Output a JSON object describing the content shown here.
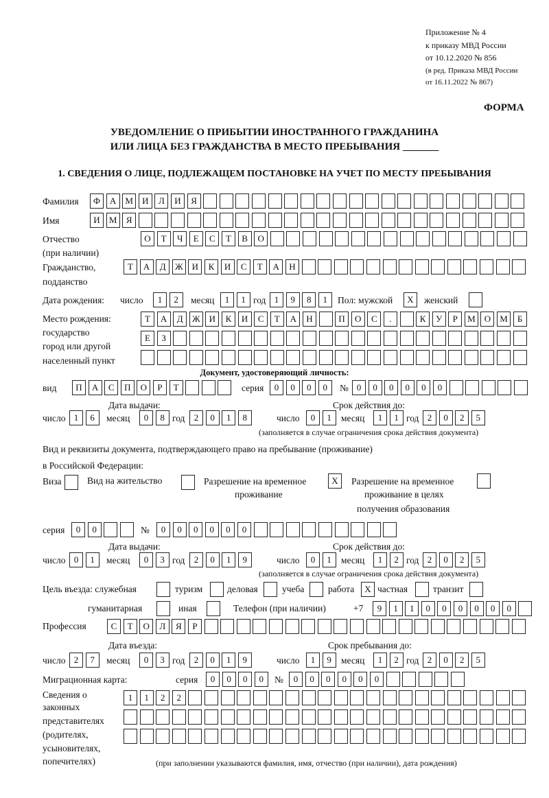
{
  "header": {
    "appendix": "Приложение № 4",
    "order": "к приказу МВД России",
    "order_date": "от 10.12.2020 № 856",
    "edition1": "(в ред. Приказа МВД России",
    "edition2": "от 16.11.2022 № 867)",
    "form_label": "ФОРМА",
    "title1": "УВЕДОМЛЕНИЕ О ПРИБЫТИИ ИНОСТРАННОГО ГРАЖДАНИНА",
    "title2": "ИЛИ ЛИЦА БЕЗ ГРАЖДАНСТВА В МЕСТО ПРЕБЫВАНИЯ _______"
  },
  "section1": {
    "heading": "1. СВЕДЕНИЯ О ЛИЦЕ, ПОДЛЕЖАЩЕМ ПОСТАНОВКЕ НА УЧЕТ ПО МЕСТУ ПРЕБЫВАНИЯ",
    "labels": {
      "surname": "Фамилия",
      "name": "Имя",
      "patronymic": "Отчество",
      "patronymic2": "(при наличии)",
      "citizenship": "Гражданство,",
      "citizenship2": "подданство",
      "birth_date": "Дата рождения:",
      "day": "число",
      "month": "месяц",
      "year": "год",
      "sex": "Пол: мужской",
      "female": "женский",
      "birth_place": "Место рождения:",
      "state": "государство",
      "city": "город или другой",
      "settlement": "населенный пункт",
      "id_doc": "Документ, удостоверяющий личность:",
      "kind": "вид",
      "series": "серия",
      "number": "№",
      "issue_date": "Дата выдачи:",
      "valid_until": "Срок действия до:",
      "valid_note": "(заполняется в случае ограничения срока действия документа)",
      "permit1": "Вид и реквизиты документа, подтверждающего право на пребывание (проживание)",
      "permit2": "в Российской Федерации:",
      "visa": "Виза",
      "residence": "Вид на жительство",
      "trp1": "Разрешение на временное",
      "trp2": "проживание",
      "trp_edu1": "Разрешение на временное",
      "trp_edu2": "проживание в целях",
      "trp_edu3": "получения образования",
      "purpose": "Цель въезда: служебная",
      "tourism": "туризм",
      "business": "деловая",
      "study": "учеба",
      "work": "работа",
      "private": "частная",
      "transit": "транзит",
      "humanitarian": "гуманитарная",
      "other": "иная",
      "phone": "Телефон (при наличии)",
      "phone_prefix": "+7",
      "profession": "Профессия",
      "entry_date": "Дата въезда:",
      "stay_until": "Срок пребывания до:",
      "migration_card": "Миграционная карта:",
      "reps1": "Сведения о",
      "reps2": "законных",
      "reps3": "представителях",
      "reps4": "(родителях,",
      "reps5": "усыновителях,",
      "reps6": "попечителях)",
      "reps_note": "(при заполнении указываются фамилия, имя, отчество (при наличии), дата рождения)"
    },
    "surname": [
      "Ф",
      "А",
      "М",
      "И",
      "Л",
      "И",
      "Я",
      "",
      "",
      "",
      "",
      "",
      "",
      "",
      "",
      "",
      "",
      "",
      "",
      "",
      "",
      "",
      "",
      "",
      "",
      "",
      ""
    ],
    "name": [
      "И",
      "М",
      "Я",
      "",
      "",
      "",
      "",
      "",
      "",
      "",
      "",
      "",
      "",
      "",
      "",
      "",
      "",
      "",
      "",
      "",
      "",
      "",
      "",
      "",
      "",
      "",
      ""
    ],
    "patronymic": [
      "О",
      "Т",
      "Ч",
      "Е",
      "С",
      "Т",
      "В",
      "О",
      "",
      "",
      "",
      "",
      "",
      "",
      "",
      "",
      "",
      "",
      "",
      "",
      "",
      "",
      "",
      ""
    ],
    "citizenship": [
      "Т",
      "А",
      "Д",
      "Ж",
      "И",
      "К",
      "И",
      "С",
      "Т",
      "А",
      "Н",
      "",
      "",
      "",
      "",
      "",
      "",
      "",
      "",
      "",
      "",
      "",
      "",
      "",
      ""
    ],
    "birth_day": [
      "1",
      "2"
    ],
    "birth_month": [
      "1",
      "1"
    ],
    "birth_year": [
      "1",
      "9",
      "8",
      "1"
    ],
    "sex_male": [
      "X"
    ],
    "sex_female": [
      ""
    ],
    "birth_place_1": [
      "Т",
      "А",
      "Д",
      "Ж",
      "И",
      "К",
      "И",
      "С",
      "Т",
      "А",
      "Н",
      "",
      "П",
      "О",
      "С",
      ".",
      "",
      "К",
      "У",
      "Р",
      "М",
      "О",
      "М",
      "Б"
    ],
    "birth_place_2": [
      "Е",
      "З",
      "",
      "",
      "",
      "",
      "",
      "",
      "",
      "",
      "",
      "",
      "",
      "",
      "",
      "",
      "",
      "",
      "",
      "",
      "",
      "",
      "",
      ""
    ],
    "birth_place_3": [
      "",
      "",
      "",
      "",
      "",
      "",
      "",
      "",
      "",
      "",
      "",
      "",
      "",
      "",
      "",
      "",
      "",
      "",
      "",
      "",
      "",
      "",
      "",
      ""
    ],
    "doc_kind": [
      "П",
      "А",
      "С",
      "П",
      "О",
      "Р",
      "Т",
      "",
      "",
      ""
    ],
    "doc_series": [
      "0",
      "0",
      "0",
      "0"
    ],
    "doc_number": [
      "0",
      "0",
      "0",
      "0",
      "0",
      "0",
      "",
      "",
      "",
      "",
      ""
    ],
    "doc_issue_day": [
      "1",
      "6"
    ],
    "doc_issue_month": [
      "0",
      "8"
    ],
    "doc_issue_year": [
      "2",
      "0",
      "1",
      "8"
    ],
    "doc_valid_day": [
      "0",
      "1"
    ],
    "doc_valid_month": [
      "1",
      "1"
    ],
    "doc_valid_year": [
      "2",
      "0",
      "2",
      "5"
    ],
    "permit_visa": [
      ""
    ],
    "permit_residence": [
      ""
    ],
    "permit_trp": [
      "X"
    ],
    "permit_trp_edu": [
      ""
    ],
    "permit_series": [
      "0",
      "0",
      "",
      ""
    ],
    "permit_number": [
      "0",
      "0",
      "0",
      "0",
      "0",
      "0",
      "",
      "",
      "",
      "",
      "",
      "",
      "",
      "",
      ""
    ],
    "permit_issue_day": [
      "0",
      "1"
    ],
    "permit_issue_month": [
      "0",
      "3"
    ],
    "permit_issue_year": [
      "2",
      "0",
      "1",
      "9"
    ],
    "permit_valid_day": [
      "0",
      "1"
    ],
    "permit_valid_month": [
      "1",
      "2"
    ],
    "permit_valid_year": [
      "2",
      "0",
      "2",
      "5"
    ],
    "purpose_official": [
      ""
    ],
    "purpose_tourism": [
      ""
    ],
    "purpose_business": [
      ""
    ],
    "purpose_study": [
      ""
    ],
    "purpose_work": [
      "X"
    ],
    "purpose_private": [
      ""
    ],
    "purpose_transit": [
      ""
    ],
    "purpose_humanitarian": [
      ""
    ],
    "purpose_other": [
      ""
    ],
    "phone": [
      "9",
      "1",
      "1",
      "0",
      "0",
      "0",
      "0",
      "0",
      "0",
      ""
    ],
    "profession": [
      "С",
      "Т",
      "О",
      "Л",
      "Я",
      "Р",
      "",
      "",
      "",
      "",
      "",
      "",
      "",
      "",
      "",
      "",
      "",
      "",
      "",
      "",
      "",
      "",
      "",
      "",
      "",
      ""
    ],
    "entry_day": [
      "2",
      "7"
    ],
    "entry_month": [
      "0",
      "3"
    ],
    "entry_year": [
      "2",
      "0",
      "1",
      "9"
    ],
    "stay_day": [
      "1",
      "9"
    ],
    "stay_month": [
      "1",
      "2"
    ],
    "stay_year": [
      "2",
      "0",
      "2",
      "5"
    ],
    "mig_series": [
      "0",
      "0",
      "0",
      "0"
    ],
    "mig_number": [
      "0",
      "0",
      "0",
      "0",
      "0",
      "0",
      "",
      "",
      "",
      "",
      ""
    ],
    "reps_1": [
      "1",
      "1",
      "2",
      "2",
      "",
      "",
      "",
      "",
      "",
      "",
      "",
      "",
      "",
      "",
      "",
      "",
      "",
      "",
      "",
      "",
      "",
      "",
      "",
      "",
      ""
    ],
    "reps_2": [
      "",
      "",
      "",
      "",
      "",
      "",
      "",
      "",
      "",
      "",
      "",
      "",
      "",
      "",
      "",
      "",
      "",
      "",
      "",
      "",
      "",
      "",
      "",
      "",
      ""
    ],
    "reps_3": [
      "",
      "",
      "",
      "",
      "",
      "",
      "",
      "",
      "",
      "",
      "",
      "",
      "",
      "",
      "",
      "",
      "",
      "",
      "",
      "",
      "",
      "",
      "",
      "",
      ""
    ]
  }
}
